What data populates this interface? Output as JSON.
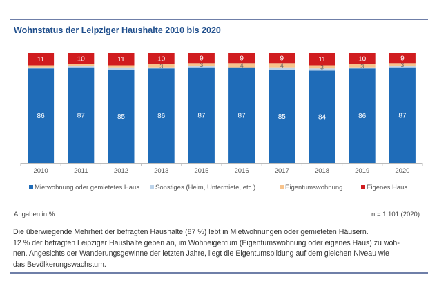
{
  "title": "Wohnstatus der Leipziger Haushalte 2010 bis 2020",
  "chart_data": {
    "type": "bar",
    "stacked": true,
    "title": "Wohnstatus der Leipziger Haushalte 2010 bis 2020",
    "categories": [
      "2010",
      "2011",
      "2012",
      "2013",
      "2015",
      "2016",
      "2017",
      "2018",
      "2019",
      "2020"
    ],
    "ylim": [
      0,
      100
    ],
    "grid": false,
    "legend_placement": "bottom",
    "series": [
      {
        "name": "Mietwohnung oder gemietetes Haus",
        "color": "#1f6cb8",
        "values": [
          86,
          87,
          85,
          86,
          87,
          87,
          85,
          84,
          86,
          87
        ],
        "labels": [
          true,
          true,
          true,
          true,
          true,
          true,
          true,
          true,
          true,
          true
        ]
      },
      {
        "name": "Sonstiges (Heim, Untermiete, etc.)",
        "color": "#bcd3ea",
        "values": [
          1,
          1,
          2,
          1,
          1,
          0,
          2,
          2,
          1,
          1
        ],
        "labels": [
          false,
          false,
          false,
          false,
          false,
          false,
          false,
          false,
          false,
          false
        ]
      },
      {
        "name": "Eigentumswohnung",
        "color": "#f7c38c",
        "values": [
          2,
          2,
          2,
          3,
          3,
          4,
          4,
          3,
          3,
          3
        ],
        "labels": [
          false,
          false,
          false,
          true,
          true,
          true,
          true,
          true,
          true,
          true
        ]
      },
      {
        "name": "Eigenes Haus",
        "color": "#d01c1f",
        "values": [
          11,
          10,
          11,
          10,
          9,
          9,
          9,
          11,
          10,
          9
        ],
        "labels": [
          true,
          true,
          true,
          true,
          true,
          true,
          true,
          true,
          true,
          true
        ]
      }
    ]
  },
  "unit_note": "Angaben in %",
  "sample_note": "n = 1.101 (2020)",
  "body_lines": [
    "Die überwiegende Mehrheit der befragten Haushalte (87 %) lebt in Mietwohnungen oder gemieteten Häusern.",
    "12 % der befragten Leipziger Haushalte geben an, im Wohneigentum (Eigentumswohnung oder eigenes Haus) zu woh-",
    "nen. Angesichts der Wanderungsgewinne der letzten Jahre, liegt die Eigentumsbildung auf dem gleichen Niveau wie",
    "das Bevölkerungswachstum."
  ]
}
